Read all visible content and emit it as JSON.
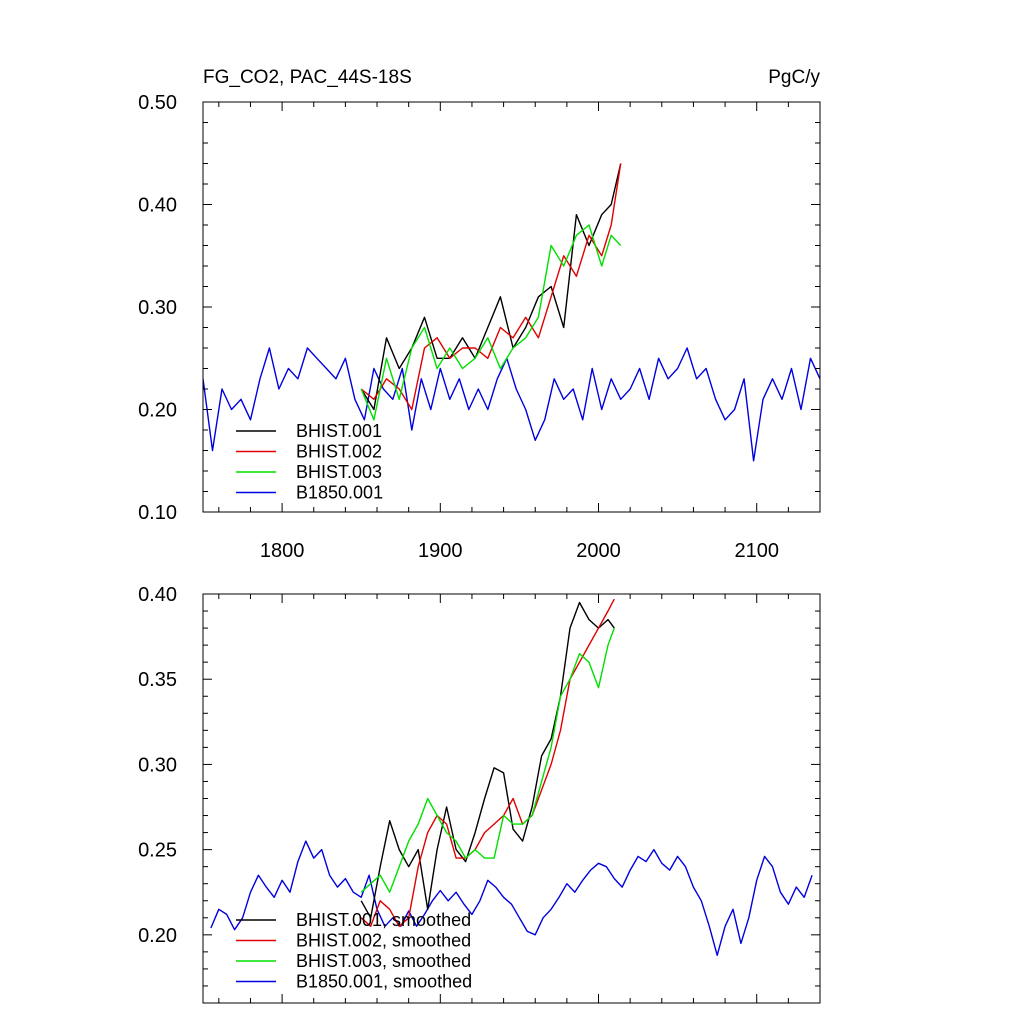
{
  "title_left": "FG_CO2, PAC_44S-18S",
  "title_right": "PgC/y",
  "colors": {
    "BHIST.001": "#000000",
    "BHIST.002": "#e00000",
    "BHIST.003": "#00e000",
    "B1850.001": "#0000e0"
  },
  "chart_data": [
    {
      "type": "line",
      "title": "FG_CO2, PAC_44S-18S",
      "units": "PgC/y",
      "xlim": [
        1750,
        2140
      ],
      "ylim": [
        0.1,
        0.5
      ],
      "xticks": [
        1800,
        1900,
        2000,
        2100
      ],
      "xtick_labels": [
        "1800",
        "1900",
        "2000",
        "2100"
      ],
      "yticks": [
        0.1,
        0.2,
        0.3,
        0.4,
        0.5
      ],
      "ytick_labels": [
        "0.10",
        "0.20",
        "0.30",
        "0.40",
        "0.50"
      ],
      "legend": "bottom-left",
      "series": [
        {
          "name": "BHIST.001",
          "color": "#000000",
          "x": [
            1850,
            1858,
            1866,
            1874,
            1882,
            1890,
            1898,
            1906,
            1914,
            1922,
            1930,
            1938,
            1946,
            1954,
            1962,
            1970,
            1978,
            1986,
            1994,
            2002,
            2008,
            2014
          ],
          "y": [
            0.22,
            0.2,
            0.27,
            0.24,
            0.26,
            0.29,
            0.25,
            0.25,
            0.27,
            0.25,
            0.28,
            0.31,
            0.26,
            0.28,
            0.31,
            0.32,
            0.28,
            0.39,
            0.36,
            0.39,
            0.4,
            0.44
          ]
        },
        {
          "name": "BHIST.002",
          "color": "#e00000",
          "x": [
            1850,
            1858,
            1866,
            1874,
            1882,
            1890,
            1898,
            1906,
            1914,
            1922,
            1930,
            1938,
            1946,
            1954,
            1962,
            1970,
            1978,
            1986,
            1994,
            2002,
            2008,
            2014
          ],
          "y": [
            0.22,
            0.21,
            0.23,
            0.22,
            0.2,
            0.26,
            0.27,
            0.25,
            0.26,
            0.26,
            0.25,
            0.28,
            0.27,
            0.29,
            0.27,
            0.31,
            0.35,
            0.33,
            0.37,
            0.35,
            0.38,
            0.44
          ]
        },
        {
          "name": "BHIST.003",
          "color": "#00e000",
          "x": [
            1850,
            1858,
            1866,
            1874,
            1882,
            1890,
            1898,
            1906,
            1914,
            1922,
            1930,
            1938,
            1946,
            1954,
            1962,
            1970,
            1978,
            1986,
            1994,
            2002,
            2008,
            2014
          ],
          "y": [
            0.22,
            0.19,
            0.25,
            0.21,
            0.26,
            0.28,
            0.24,
            0.26,
            0.24,
            0.25,
            0.27,
            0.24,
            0.26,
            0.27,
            0.29,
            0.36,
            0.34,
            0.37,
            0.38,
            0.34,
            0.37,
            0.36
          ]
        },
        {
          "name": "B1850.001",
          "color": "#0000e0",
          "x": [
            1750,
            1756,
            1762,
            1768,
            1774,
            1780,
            1786,
            1792,
            1798,
            1804,
            1810,
            1816,
            1822,
            1828,
            1834,
            1840,
            1846,
            1852,
            1858,
            1864,
            1870,
            1876,
            1882,
            1888,
            1894,
            1900,
            1906,
            1912,
            1918,
            1924,
            1930,
            1936,
            1942,
            1948,
            1954,
            1960,
            1966,
            1972,
            1978,
            1984,
            1990,
            1996,
            2002,
            2008,
            2014,
            2020,
            2026,
            2032,
            2038,
            2044,
            2050,
            2056,
            2062,
            2068,
            2074,
            2080,
            2086,
            2092,
            2098,
            2104,
            2110,
            2116,
            2122,
            2128,
            2134,
            2140
          ],
          "y": [
            0.23,
            0.16,
            0.22,
            0.2,
            0.21,
            0.19,
            0.23,
            0.26,
            0.22,
            0.24,
            0.23,
            0.26,
            0.25,
            0.24,
            0.23,
            0.25,
            0.21,
            0.19,
            0.24,
            0.22,
            0.21,
            0.24,
            0.18,
            0.23,
            0.2,
            0.24,
            0.21,
            0.23,
            0.2,
            0.22,
            0.2,
            0.23,
            0.25,
            0.22,
            0.2,
            0.17,
            0.19,
            0.23,
            0.21,
            0.22,
            0.19,
            0.24,
            0.2,
            0.23,
            0.21,
            0.22,
            0.24,
            0.21,
            0.25,
            0.23,
            0.24,
            0.26,
            0.23,
            0.24,
            0.21,
            0.19,
            0.2,
            0.23,
            0.15,
            0.21,
            0.23,
            0.21,
            0.24,
            0.2,
            0.25,
            0.23
          ]
        }
      ]
    },
    {
      "type": "line",
      "title": "",
      "xlim": [
        1750,
        2140
      ],
      "ylim": [
        0.16,
        0.4
      ],
      "xticks": [
        1800,
        1900,
        2000,
        2100
      ],
      "yticks": [
        0.2,
        0.25,
        0.3,
        0.35,
        0.4
      ],
      "ytick_labels": [
        "0.20",
        "0.25",
        "0.30",
        "0.35",
        "0.40"
      ],
      "legend": "bottom-left",
      "series": [
        {
          "name": "BHIST.001, smoothed",
          "color": "#000000",
          "x": [
            1850,
            1856,
            1862,
            1868,
            1874,
            1880,
            1886,
            1892,
            1898,
            1904,
            1910,
            1916,
            1922,
            1928,
            1934,
            1940,
            1946,
            1952,
            1958,
            1964,
            1970,
            1976,
            1982,
            1988,
            1994,
            2000,
            2006,
            2010
          ],
          "y": [
            0.22,
            0.21,
            0.24,
            0.267,
            0.25,
            0.24,
            0.25,
            0.215,
            0.25,
            0.275,
            0.25,
            0.243,
            0.26,
            0.28,
            0.298,
            0.295,
            0.262,
            0.255,
            0.275,
            0.305,
            0.315,
            0.34,
            0.38,
            0.395,
            0.385,
            0.38,
            0.385,
            0.38
          ]
        },
        {
          "name": "BHIST.002, smoothed",
          "color": "#e00000",
          "x": [
            1850,
            1856,
            1862,
            1868,
            1874,
            1880,
            1886,
            1892,
            1898,
            1904,
            1910,
            1916,
            1922,
            1928,
            1934,
            1940,
            1946,
            1952,
            1958,
            1964,
            1970,
            1976,
            1982,
            1988,
            1994,
            2000,
            2006,
            2010
          ],
          "y": [
            0.21,
            0.205,
            0.22,
            0.215,
            0.205,
            0.21,
            0.24,
            0.26,
            0.27,
            0.265,
            0.245,
            0.245,
            0.25,
            0.26,
            0.265,
            0.27,
            0.28,
            0.265,
            0.27,
            0.285,
            0.3,
            0.32,
            0.35,
            0.36,
            0.37,
            0.38,
            0.39,
            0.397
          ]
        },
        {
          "name": "BHIST.003, smoothed",
          "color": "#00e000",
          "x": [
            1850,
            1856,
            1862,
            1868,
            1874,
            1880,
            1886,
            1892,
            1898,
            1904,
            1910,
            1916,
            1922,
            1928,
            1934,
            1940,
            1946,
            1952,
            1958,
            1964,
            1970,
            1976,
            1982,
            1988,
            1994,
            2000,
            2006,
            2010
          ],
          "y": [
            0.225,
            0.23,
            0.235,
            0.225,
            0.24,
            0.255,
            0.265,
            0.28,
            0.27,
            0.26,
            0.255,
            0.245,
            0.25,
            0.245,
            0.245,
            0.27,
            0.265,
            0.265,
            0.27,
            0.29,
            0.31,
            0.34,
            0.35,
            0.365,
            0.36,
            0.345,
            0.37,
            0.38
          ]
        },
        {
          "name": "B1850.001, smoothed",
          "color": "#0000e0",
          "x": [
            1755,
            1760,
            1765,
            1770,
            1775,
            1780,
            1785,
            1790,
            1795,
            1800,
            1805,
            1810,
            1815,
            1820,
            1825,
            1830,
            1835,
            1840,
            1845,
            1850,
            1855,
            1860,
            1865,
            1870,
            1875,
            1880,
            1885,
            1890,
            1895,
            1900,
            1905,
            1910,
            1915,
            1920,
            1925,
            1930,
            1935,
            1940,
            1945,
            1950,
            1955,
            1960,
            1965,
            1970,
            1975,
            1980,
            1985,
            1990,
            1995,
            2000,
            2005,
            2010,
            2015,
            2020,
            2025,
            2030,
            2035,
            2040,
            2045,
            2050,
            2055,
            2060,
            2065,
            2070,
            2075,
            2080,
            2085,
            2090,
            2095,
            2100,
            2105,
            2110,
            2115,
            2120,
            2125,
            2130,
            2135
          ],
          "y": [
            0.204,
            0.215,
            0.212,
            0.203,
            0.21,
            0.225,
            0.235,
            0.228,
            0.222,
            0.232,
            0.225,
            0.243,
            0.255,
            0.245,
            0.25,
            0.235,
            0.228,
            0.233,
            0.225,
            0.222,
            0.235,
            0.215,
            0.205,
            0.21,
            0.205,
            0.214,
            0.205,
            0.212,
            0.22,
            0.226,
            0.22,
            0.225,
            0.218,
            0.212,
            0.22,
            0.232,
            0.228,
            0.222,
            0.218,
            0.21,
            0.202,
            0.2,
            0.21,
            0.215,
            0.222,
            0.23,
            0.225,
            0.232,
            0.238,
            0.242,
            0.24,
            0.233,
            0.228,
            0.238,
            0.246,
            0.243,
            0.25,
            0.242,
            0.238,
            0.246,
            0.24,
            0.228,
            0.22,
            0.205,
            0.188,
            0.205,
            0.215,
            0.195,
            0.21,
            0.232,
            0.246,
            0.24,
            0.225,
            0.218,
            0.228,
            0.222,
            0.235
          ]
        }
      ]
    }
  ]
}
